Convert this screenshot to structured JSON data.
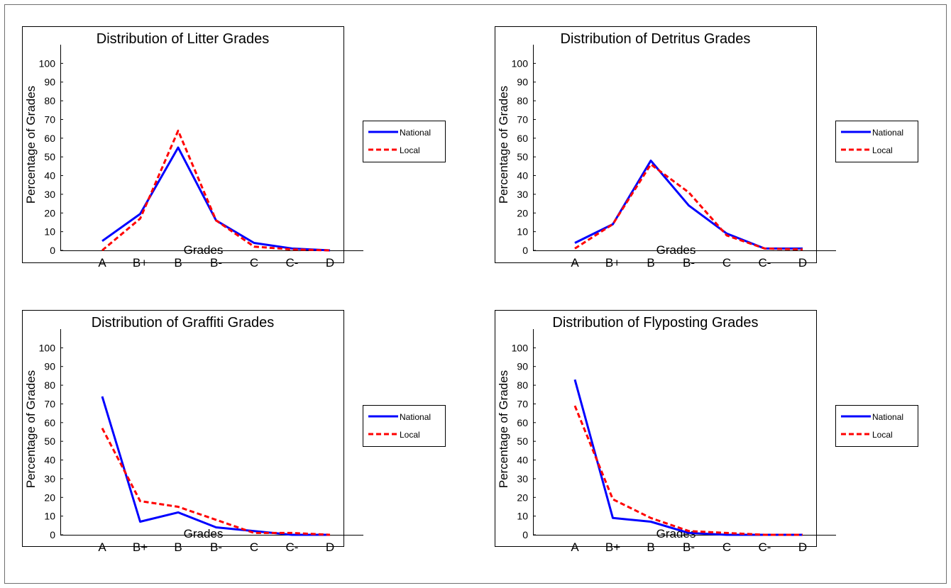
{
  "chart_data": [
    {
      "type": "line",
      "title": "Distribution of Litter Grades",
      "xlabel": "Grades",
      "ylabel": "Percentage of Grades",
      "categories": [
        "A",
        "B+",
        "B",
        "B-",
        "C",
        "C-",
        "D"
      ],
      "ylim": [
        0,
        110
      ],
      "yticks": [
        0,
        10,
        20,
        30,
        40,
        50,
        60,
        70,
        80,
        90,
        100
      ],
      "legend": "right",
      "series": [
        {
          "name": "National",
          "color": "#0000ff",
          "style": "solid",
          "values": [
            5,
            19.5,
            55,
            16,
            4,
            1,
            0
          ]
        },
        {
          "name": "Local",
          "color": "#ff0000",
          "style": "dashed",
          "values": [
            0,
            17,
            64,
            16,
            2,
            0.5,
            0
          ]
        }
      ]
    },
    {
      "type": "line",
      "title": "Distribution of Detritus Grades",
      "xlabel": "Grades",
      "ylabel": "Percentage of Grades",
      "categories": [
        "A",
        "B+",
        "B",
        "B-",
        "C",
        "C-",
        "D"
      ],
      "ylim": [
        0,
        110
      ],
      "yticks": [
        0,
        10,
        20,
        30,
        40,
        50,
        60,
        70,
        80,
        90,
        100
      ],
      "legend": "right",
      "series": [
        {
          "name": "National",
          "color": "#0000ff",
          "style": "solid",
          "values": [
            4,
            14,
            48,
            24,
            9,
            1,
            1
          ]
        },
        {
          "name": "Local",
          "color": "#ff0000",
          "style": "dashed",
          "values": [
            1,
            14,
            46,
            31,
            8,
            1,
            0.5
          ]
        }
      ]
    },
    {
      "type": "line",
      "title": "Distribution of Graffiti Grades",
      "xlabel": "Grades",
      "ylabel": "Percentage of Grades",
      "categories": [
        "A",
        "B+",
        "B",
        "B-",
        "C",
        "C-",
        "D"
      ],
      "ylim": [
        0,
        110
      ],
      "yticks": [
        0,
        10,
        20,
        30,
        40,
        50,
        60,
        70,
        80,
        90,
        100
      ],
      "legend": "right",
      "series": [
        {
          "name": "National",
          "color": "#0000ff",
          "style": "solid",
          "values": [
            74,
            7,
            12,
            4,
            2,
            0,
            0
          ]
        },
        {
          "name": "Local",
          "color": "#ff0000",
          "style": "dashed",
          "values": [
            57,
            18,
            15,
            8,
            1,
            1,
            0
          ]
        }
      ]
    },
    {
      "type": "line",
      "title": "Distribution of Flyposting Grades",
      "xlabel": "Grades",
      "ylabel": "Percentage of Grades",
      "categories": [
        "A",
        "B+",
        "B",
        "B-",
        "C",
        "C-",
        "D"
      ],
      "ylim": [
        0,
        110
      ],
      "yticks": [
        0,
        10,
        20,
        30,
        40,
        50,
        60,
        70,
        80,
        90,
        100
      ],
      "legend": "right",
      "series": [
        {
          "name": "National",
          "color": "#0000ff",
          "style": "solid",
          "values": [
            83,
            9,
            7,
            1,
            0,
            0,
            0
          ]
        },
        {
          "name": "Local",
          "color": "#ff0000",
          "style": "dashed",
          "values": [
            69,
            19,
            9,
            2,
            1,
            0,
            0
          ]
        }
      ]
    }
  ]
}
